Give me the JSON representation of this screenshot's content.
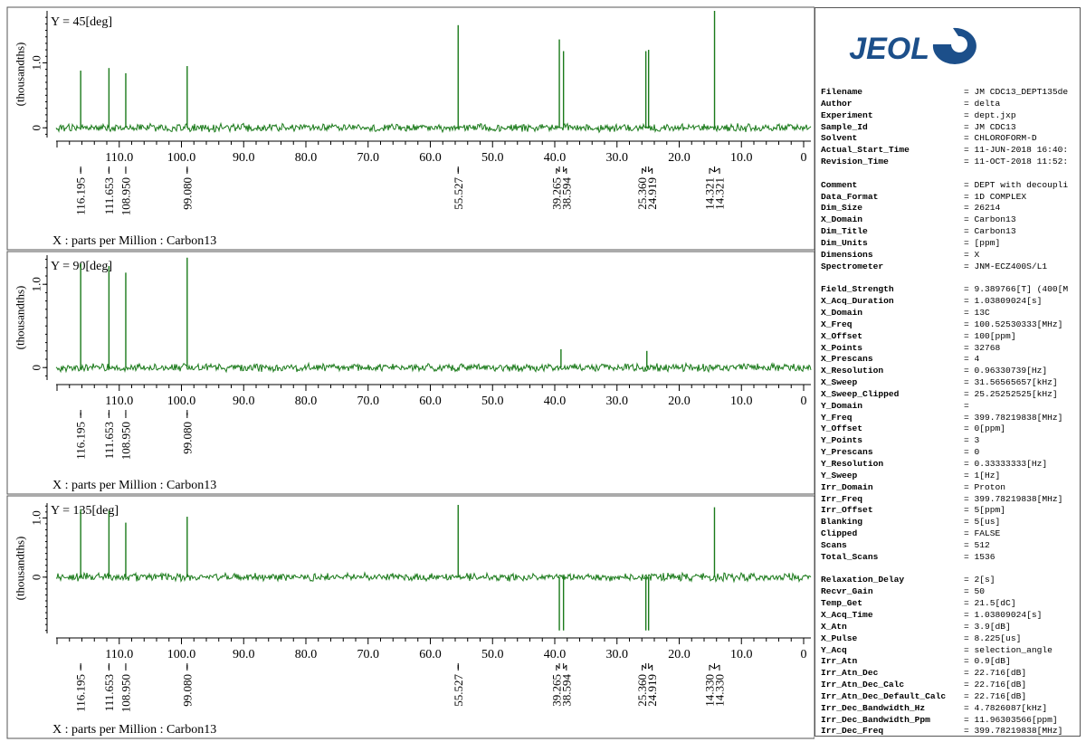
{
  "chart_data": [
    {
      "type": "line",
      "title": "Y = 45[deg]",
      "xlabel": "X : parts per Million : Carbon13",
      "ylabel": "(thousandths)",
      "x_reversed": true,
      "xlim": [
        0,
        120
      ],
      "ylim": [
        -0.15,
        1.8
      ],
      "y_ticks": [
        0,
        1.0
      ],
      "y_tick_labels": [
        "0",
        "1.0"
      ],
      "x_ticks": [
        110,
        100,
        90,
        80,
        70,
        60,
        50,
        40,
        30,
        20,
        10,
        0
      ],
      "x_tick_labels": [
        "110.0",
        "100.0",
        "90.0",
        "80.0",
        "70.0",
        "60.0",
        "50.0",
        "40.0",
        "30.0",
        "20.0",
        "10.0",
        "0"
      ],
      "series_color": "#1a7a1a",
      "peaks": [
        {
          "x": 116.195,
          "y": 0.88
        },
        {
          "x": 111.653,
          "y": 0.92
        },
        {
          "x": 108.95,
          "y": 0.84
        },
        {
          "x": 99.08,
          "y": 0.95
        },
        {
          "x": 55.527,
          "y": 1.58
        },
        {
          "x": 39.265,
          "y": 1.36
        },
        {
          "x": 38.594,
          "y": 1.18
        },
        {
          "x": 25.36,
          "y": 1.18
        },
        {
          "x": 24.919,
          "y": 1.2
        },
        {
          "x": 14.321,
          "y": 1.8
        }
      ],
      "peak_labels": [
        "116.195",
        "111.653",
        "108.950",
        "99.080",
        "55.527",
        "39.265",
        "38.594",
        "25.360",
        "24.919",
        "14.321",
        "14.321"
      ]
    },
    {
      "type": "line",
      "title": "Y = 90[deg]",
      "xlabel": "X : parts per Million : Carbon13",
      "ylabel": "(thousandths)",
      "x_reversed": true,
      "xlim": [
        0,
        120
      ],
      "ylim": [
        -0.15,
        1.35
      ],
      "y_ticks": [
        0,
        1.0
      ],
      "y_tick_labels": [
        "0",
        "1.0"
      ],
      "x_ticks": [
        110,
        100,
        90,
        80,
        70,
        60,
        50,
        40,
        30,
        20,
        10,
        0
      ],
      "x_tick_labels": [
        "110.0",
        "100.0",
        "90.0",
        "80.0",
        "70.0",
        "60.0",
        "50.0",
        "40.0",
        "30.0",
        "20.0",
        "10.0",
        "0"
      ],
      "series_color": "#1a7a1a",
      "peaks": [
        {
          "x": 116.195,
          "y": 1.25
        },
        {
          "x": 111.653,
          "y": 1.22
        },
        {
          "x": 108.95,
          "y": 1.14
        },
        {
          "x": 99.08,
          "y": 1.32
        },
        {
          "x": 39.0,
          "y": 0.22
        },
        {
          "x": 25.2,
          "y": 0.2
        }
      ],
      "peak_labels": [
        "116.195",
        "111.653",
        "108.950",
        "99.080"
      ]
    },
    {
      "type": "line",
      "title": "Y = 135[deg]",
      "xlabel": "X : parts per Million : Carbon13",
      "ylabel": "(thousandths)",
      "x_reversed": true,
      "xlim": [
        0,
        120
      ],
      "ylim": [
        -0.95,
        1.25
      ],
      "y_ticks": [
        0,
        1.0
      ],
      "y_tick_labels": [
        "0",
        "1.0"
      ],
      "x_ticks": [
        110,
        100,
        90,
        80,
        70,
        60,
        50,
        40,
        30,
        20,
        10,
        0
      ],
      "x_tick_labels": [
        "110.0",
        "100.0",
        "90.0",
        "80.0",
        "70.0",
        "60.0",
        "50.0",
        "40.0",
        "30.0",
        "20.0",
        "10.0",
        "0"
      ],
      "series_color": "#1a7a1a",
      "peaks": [
        {
          "x": 116.195,
          "y": 1.15
        },
        {
          "x": 111.653,
          "y": 1.12
        },
        {
          "x": 108.95,
          "y": 0.92
        },
        {
          "x": 99.08,
          "y": 1.02
        },
        {
          "x": 55.527,
          "y": 1.22
        },
        {
          "x": 39.265,
          "y": -0.9
        },
        {
          "x": 38.594,
          "y": -0.9
        },
        {
          "x": 25.36,
          "y": -0.9
        },
        {
          "x": 24.919,
          "y": -0.9
        },
        {
          "x": 14.33,
          "y": 1.18
        }
      ],
      "peak_labels": [
        "116.195",
        "111.653",
        "108.950",
        "99.080",
        "55.527",
        "39.265",
        "38.594",
        "25.360",
        "24.919",
        "14.330",
        "14.330"
      ]
    }
  ],
  "logo": {
    "text": "JEOL",
    "color": "#1c4f8a"
  },
  "parameters": [
    {
      "key": "Filename",
      "value": "= JM CDC13_DEPT135de"
    },
    {
      "key": "Author",
      "value": "= delta"
    },
    {
      "key": "Experiment",
      "value": "= dept.jxp"
    },
    {
      "key": "Sample_Id",
      "value": "= JM CDC13"
    },
    {
      "key": "Solvent",
      "value": "= CHLOROFORM-D"
    },
    {
      "key": "Actual_Start_Time",
      "value": "= 11-JUN-2018 16:40:"
    },
    {
      "key": "Revision_Time",
      "value": "= 11-OCT-2018 11:52:"
    },
    {
      "key": "",
      "value": ""
    },
    {
      "key": "Comment",
      "value": "= DEPT with decoupli"
    },
    {
      "key": "Data_Format",
      "value": "= 1D COMPLEX"
    },
    {
      "key": "Dim_Size",
      "value": "= 26214"
    },
    {
      "key": "X_Domain",
      "value": "= Carbon13"
    },
    {
      "key": "Dim_Title",
      "value": "= Carbon13"
    },
    {
      "key": "Dim_Units",
      "value": "= [ppm]"
    },
    {
      "key": "Dimensions",
      "value": "= X"
    },
    {
      "key": "Spectrometer",
      "value": "= JNM-ECZ400S/L1"
    },
    {
      "key": "",
      "value": ""
    },
    {
      "key": "Field_Strength",
      "value": "= 9.389766[T] (400[M"
    },
    {
      "key": "X_Acq_Duration",
      "value": "= 1.03809024[s]"
    },
    {
      "key": "X_Domain",
      "value": "= 13C"
    },
    {
      "key": "X_Freq",
      "value": "= 100.52530333[MHz]"
    },
    {
      "key": "X_Offset",
      "value": "= 100[ppm]"
    },
    {
      "key": "X_Points",
      "value": "= 32768"
    },
    {
      "key": "X_Prescans",
      "value": "= 4"
    },
    {
      "key": "X_Resolution",
      "value": "= 0.96330739[Hz]"
    },
    {
      "key": "X_Sweep",
      "value": "= 31.56565657[kHz]"
    },
    {
      "key": "X_Sweep_Clipped",
      "value": "= 25.25252525[kHz]"
    },
    {
      "key": "Y_Domain",
      "value": "="
    },
    {
      "key": "Y_Freq",
      "value": "= 399.78219838[MHz]"
    },
    {
      "key": "Y_Offset",
      "value": "= 0[ppm]"
    },
    {
      "key": "Y_Points",
      "value": "= 3"
    },
    {
      "key": "Y_Prescans",
      "value": "= 0"
    },
    {
      "key": "Y_Resolution",
      "value": "= 0.33333333[Hz]"
    },
    {
      "key": "Y_Sweep",
      "value": "= 1[Hz]"
    },
    {
      "key": "Irr_Domain",
      "value": "= Proton"
    },
    {
      "key": "Irr_Freq",
      "value": "= 399.78219838[MHz]"
    },
    {
      "key": "Irr_Offset",
      "value": "= 5[ppm]"
    },
    {
      "key": "Blanking",
      "value": "= 5[us]"
    },
    {
      "key": "Clipped",
      "value": "= FALSE"
    },
    {
      "key": "Scans",
      "value": "= 512"
    },
    {
      "key": "Total_Scans",
      "value": "= 1536"
    },
    {
      "key": "",
      "value": ""
    },
    {
      "key": "Relaxation_Delay",
      "value": "= 2[s]"
    },
    {
      "key": "Recvr_Gain",
      "value": "= 50"
    },
    {
      "key": "Temp_Get",
      "value": "= 21.5[dC]"
    },
    {
      "key": "X_Acq_Time",
      "value": "= 1.03809024[s]"
    },
    {
      "key": "X_Atn",
      "value": "= 3.9[dB]"
    },
    {
      "key": "X_Pulse",
      "value": "= 8.225[us]"
    },
    {
      "key": "Y_Acq",
      "value": "= selection_angle"
    },
    {
      "key": "Irr_Atn",
      "value": "= 0.9[dB]"
    },
    {
      "key": "Irr_Atn_Dec",
      "value": "= 22.716[dB]"
    },
    {
      "key": "Irr_Atn_Dec_Calc",
      "value": "= 22.716[dB]"
    },
    {
      "key": "Irr_Atn_Dec_Default_Calc",
      "value": "= 22.716[dB]"
    },
    {
      "key": "Irr_Dec_Bandwidth_Hz",
      "value": "= 4.7826087[kHz]"
    },
    {
      "key": "Irr_Dec_Bandwidth_Ppm",
      "value": "= 11.96303566[ppm]"
    },
    {
      "key": "Irr_Dec_Freq",
      "value": "= 399.78219838[MHz]"
    }
  ]
}
